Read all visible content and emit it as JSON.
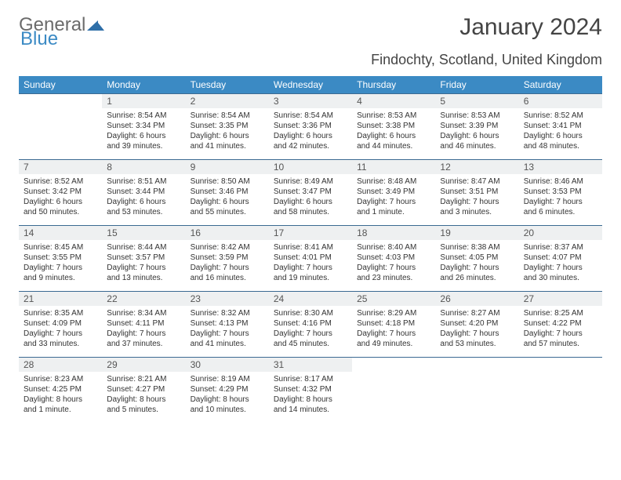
{
  "logo": {
    "part1": "General",
    "part2": "Blue"
  },
  "title": "January 2024",
  "location": "Findochty, Scotland, United Kingdom",
  "colors": {
    "header_bg": "#3b8ac4",
    "header_text": "#ffffff",
    "daynum_bg": "#eef0f1",
    "row_border": "#3b6a92",
    "body_text": "#333333",
    "title_text": "#444444"
  },
  "weekdays": [
    "Sunday",
    "Monday",
    "Tuesday",
    "Wednesday",
    "Thursday",
    "Friday",
    "Saturday"
  ],
  "weeks": [
    [
      null,
      {
        "n": "1",
        "sunrise": "8:54 AM",
        "sunset": "3:34 PM",
        "daylight": "6 hours and 39 minutes."
      },
      {
        "n": "2",
        "sunrise": "8:54 AM",
        "sunset": "3:35 PM",
        "daylight": "6 hours and 41 minutes."
      },
      {
        "n": "3",
        "sunrise": "8:54 AM",
        "sunset": "3:36 PM",
        "daylight": "6 hours and 42 minutes."
      },
      {
        "n": "4",
        "sunrise": "8:53 AM",
        "sunset": "3:38 PM",
        "daylight": "6 hours and 44 minutes."
      },
      {
        "n": "5",
        "sunrise": "8:53 AM",
        "sunset": "3:39 PM",
        "daylight": "6 hours and 46 minutes."
      },
      {
        "n": "6",
        "sunrise": "8:52 AM",
        "sunset": "3:41 PM",
        "daylight": "6 hours and 48 minutes."
      }
    ],
    [
      {
        "n": "7",
        "sunrise": "8:52 AM",
        "sunset": "3:42 PM",
        "daylight": "6 hours and 50 minutes."
      },
      {
        "n": "8",
        "sunrise": "8:51 AM",
        "sunset": "3:44 PM",
        "daylight": "6 hours and 53 minutes."
      },
      {
        "n": "9",
        "sunrise": "8:50 AM",
        "sunset": "3:46 PM",
        "daylight": "6 hours and 55 minutes."
      },
      {
        "n": "10",
        "sunrise": "8:49 AM",
        "sunset": "3:47 PM",
        "daylight": "6 hours and 58 minutes."
      },
      {
        "n": "11",
        "sunrise": "8:48 AM",
        "sunset": "3:49 PM",
        "daylight": "7 hours and 1 minute."
      },
      {
        "n": "12",
        "sunrise": "8:47 AM",
        "sunset": "3:51 PM",
        "daylight": "7 hours and 3 minutes."
      },
      {
        "n": "13",
        "sunrise": "8:46 AM",
        "sunset": "3:53 PM",
        "daylight": "7 hours and 6 minutes."
      }
    ],
    [
      {
        "n": "14",
        "sunrise": "8:45 AM",
        "sunset": "3:55 PM",
        "daylight": "7 hours and 9 minutes."
      },
      {
        "n": "15",
        "sunrise": "8:44 AM",
        "sunset": "3:57 PM",
        "daylight": "7 hours and 13 minutes."
      },
      {
        "n": "16",
        "sunrise": "8:42 AM",
        "sunset": "3:59 PM",
        "daylight": "7 hours and 16 minutes."
      },
      {
        "n": "17",
        "sunrise": "8:41 AM",
        "sunset": "4:01 PM",
        "daylight": "7 hours and 19 minutes."
      },
      {
        "n": "18",
        "sunrise": "8:40 AM",
        "sunset": "4:03 PM",
        "daylight": "7 hours and 23 minutes."
      },
      {
        "n": "19",
        "sunrise": "8:38 AM",
        "sunset": "4:05 PM",
        "daylight": "7 hours and 26 minutes."
      },
      {
        "n": "20",
        "sunrise": "8:37 AM",
        "sunset": "4:07 PM",
        "daylight": "7 hours and 30 minutes."
      }
    ],
    [
      {
        "n": "21",
        "sunrise": "8:35 AM",
        "sunset": "4:09 PM",
        "daylight": "7 hours and 33 minutes."
      },
      {
        "n": "22",
        "sunrise": "8:34 AM",
        "sunset": "4:11 PM",
        "daylight": "7 hours and 37 minutes."
      },
      {
        "n": "23",
        "sunrise": "8:32 AM",
        "sunset": "4:13 PM",
        "daylight": "7 hours and 41 minutes."
      },
      {
        "n": "24",
        "sunrise": "8:30 AM",
        "sunset": "4:16 PM",
        "daylight": "7 hours and 45 minutes."
      },
      {
        "n": "25",
        "sunrise": "8:29 AM",
        "sunset": "4:18 PM",
        "daylight": "7 hours and 49 minutes."
      },
      {
        "n": "26",
        "sunrise": "8:27 AM",
        "sunset": "4:20 PM",
        "daylight": "7 hours and 53 minutes."
      },
      {
        "n": "27",
        "sunrise": "8:25 AM",
        "sunset": "4:22 PM",
        "daylight": "7 hours and 57 minutes."
      }
    ],
    [
      {
        "n": "28",
        "sunrise": "8:23 AM",
        "sunset": "4:25 PM",
        "daylight": "8 hours and 1 minute."
      },
      {
        "n": "29",
        "sunrise": "8:21 AM",
        "sunset": "4:27 PM",
        "daylight": "8 hours and 5 minutes."
      },
      {
        "n": "30",
        "sunrise": "8:19 AM",
        "sunset": "4:29 PM",
        "daylight": "8 hours and 10 minutes."
      },
      {
        "n": "31",
        "sunrise": "8:17 AM",
        "sunset": "4:32 PM",
        "daylight": "8 hours and 14 minutes."
      },
      null,
      null,
      null
    ]
  ]
}
